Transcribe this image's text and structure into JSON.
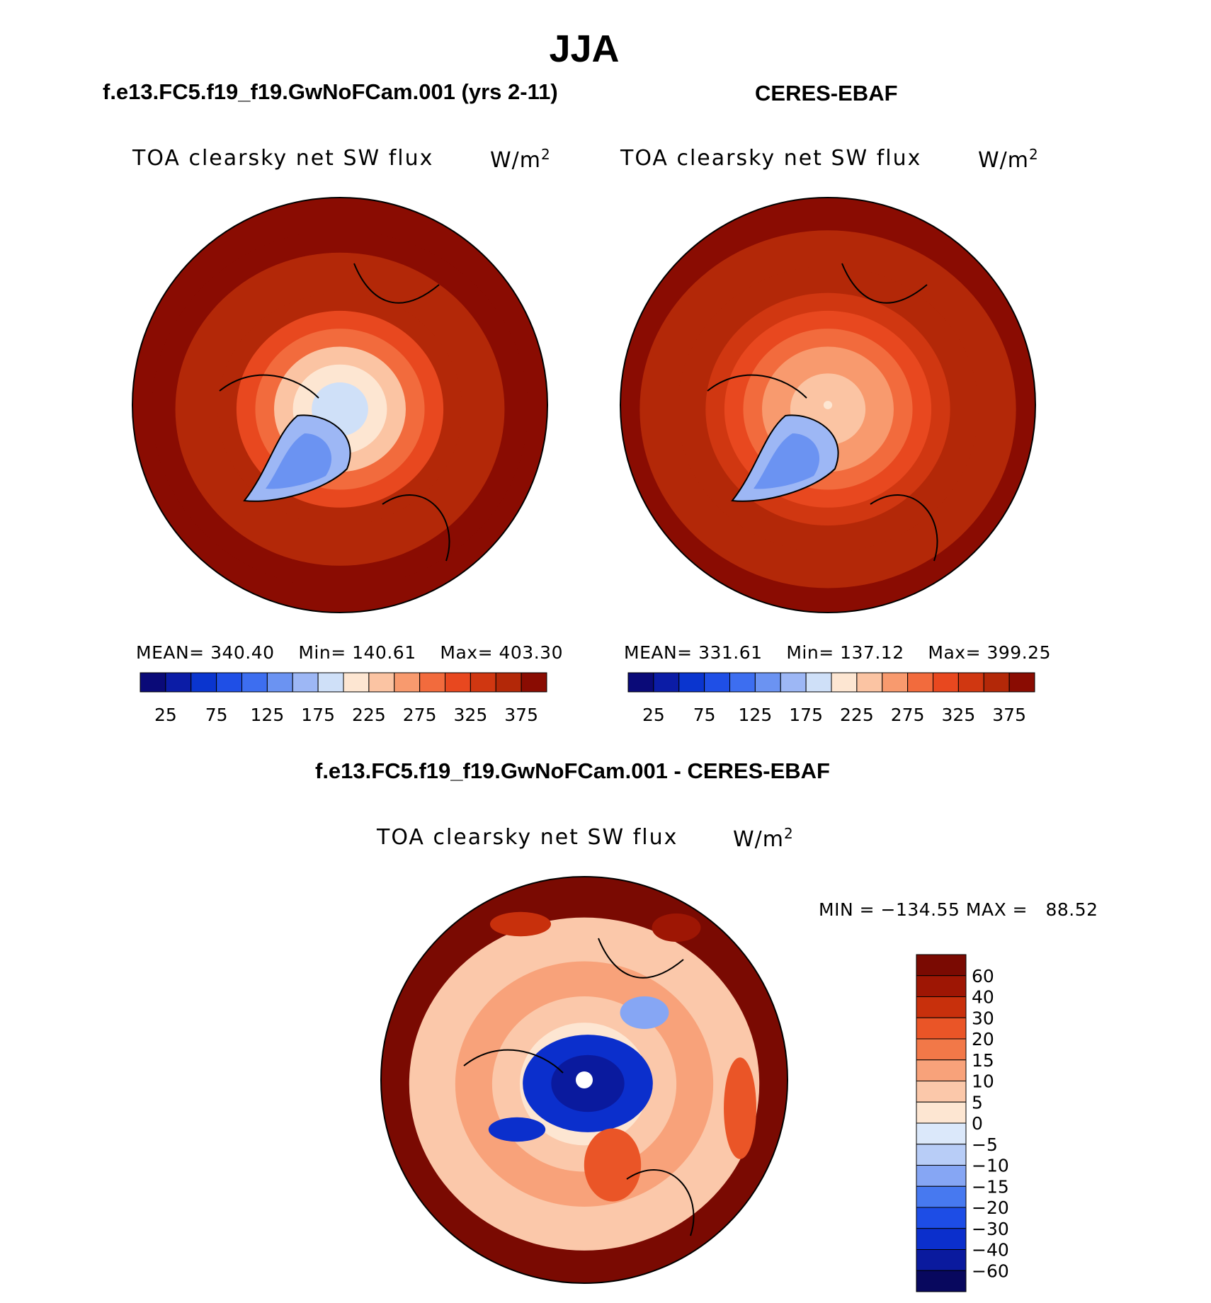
{
  "figure_title": "JJA",
  "chart_data": [
    {
      "type": "heatmap",
      "projection": "north-polar-stereographic",
      "title": "f.e13.FC5.f19_f19.GwNoFCam.001 (yrs 2-11)",
      "variable": "TOA clearsky net SW flux",
      "units": "W/m",
      "units_power": "2",
      "stats": {
        "mean_label": "MEAN=",
        "mean": "340.40",
        "min_label": "Min=",
        "min": "140.61",
        "max_label": "Max=",
        "max": "403.30"
      },
      "levels": [
        25,
        50,
        75,
        100,
        125,
        150,
        175,
        200,
        225,
        250,
        275,
        300,
        325,
        350,
        375
      ],
      "tick_labels": [
        "25",
        "75",
        "125",
        "175",
        "225",
        "275",
        "325",
        "375"
      ],
      "colors": [
        "#0a0a78",
        "#0b1ca6",
        "#0a35cf",
        "#1f4fe6",
        "#3d6ef0",
        "#6b93f2",
        "#9db7f5",
        "#cfe0f8",
        "#fde6d2",
        "#fbc4a3",
        "#f89a6e",
        "#f26b3d",
        "#e8481f",
        "#d03711",
        "#b32808",
        "#8a0c02"
      ],
      "zones_lat_value": [
        [
          90,
          195
        ],
        [
          84,
          185
        ],
        [
          80,
          215
        ],
        [
          76,
          240
        ],
        [
          72,
          290
        ],
        [
          68,
          320
        ],
        [
          64,
          350
        ],
        [
          55,
          372
        ],
        [
          50,
          395
        ]
      ]
    },
    {
      "type": "heatmap",
      "projection": "north-polar-stereographic",
      "title": "CERES-EBAF",
      "variable": "TOA clearsky net SW flux",
      "units": "W/m",
      "units_power": "2",
      "stats": {
        "mean_label": "MEAN=",
        "mean": "331.61",
        "min_label": "Min=",
        "min": "137.12",
        "max_label": "Max=",
        "max": "399.25"
      },
      "levels": [
        25,
        50,
        75,
        100,
        125,
        150,
        175,
        200,
        225,
        250,
        275,
        300,
        325,
        350,
        375
      ],
      "tick_labels": [
        "25",
        "75",
        "125",
        "175",
        "225",
        "275",
        "325",
        "375"
      ],
      "colors": [
        "#0a0a78",
        "#0b1ca6",
        "#0a35cf",
        "#1f4fe6",
        "#3d6ef0",
        "#6b93f2",
        "#9db7f5",
        "#cfe0f8",
        "#fde6d2",
        "#fbc4a3",
        "#f89a6e",
        "#f26b3d",
        "#e8481f",
        "#d03711",
        "#b32808",
        "#8a0c02"
      ],
      "zones_lat_value": [
        [
          90,
          212
        ],
        [
          82,
          238
        ],
        [
          76,
          262
        ],
        [
          72,
          290
        ],
        [
          68,
          318
        ],
        [
          64,
          340
        ],
        [
          58,
          356
        ],
        [
          50,
          372
        ]
      ]
    },
    {
      "type": "heatmap",
      "projection": "north-polar-stereographic",
      "title": "f.e13.FC5.f19_f19.GwNoFCam.001 - CERES-EBAF",
      "variable": "TOA clearsky net SW flux",
      "units": "W/m",
      "units_power": "2",
      "stats": {
        "min_label": "MIN =",
        "min": "−134.55",
        "max_label": "MAX =",
        "max": "88.52"
      },
      "levels": [
        -60,
        -40,
        -30,
        -20,
        -15,
        -10,
        -5,
        0,
        5,
        10,
        15,
        20,
        30,
        40,
        60
      ],
      "tick_labels": [
        "60",
        "40",
        "30",
        "20",
        "15",
        "10",
        "5",
        "0",
        "−5",
        "−10",
        "−15",
        "−20",
        "−30",
        "−40",
        "−60"
      ],
      "colors": [
        "#08085e",
        "#0a1a9e",
        "#0b2fcc",
        "#1d4de6",
        "#4779f0",
        "#86a6f4",
        "#b8cdf7",
        "#dbe8fa",
        "#fde6d2",
        "#fbc8aa",
        "#f8a27a",
        "#f27848",
        "#ea5527",
        "#c8300c",
        "#9e1604",
        "#7a0a02"
      ],
      "zones_lat_value": [
        [
          90,
          -38
        ],
        [
          84,
          -25
        ],
        [
          80,
          -8
        ],
        [
          76,
          3
        ],
        [
          70,
          8
        ],
        [
          62,
          10
        ],
        [
          52,
          7
        ]
      ]
    }
  ]
}
